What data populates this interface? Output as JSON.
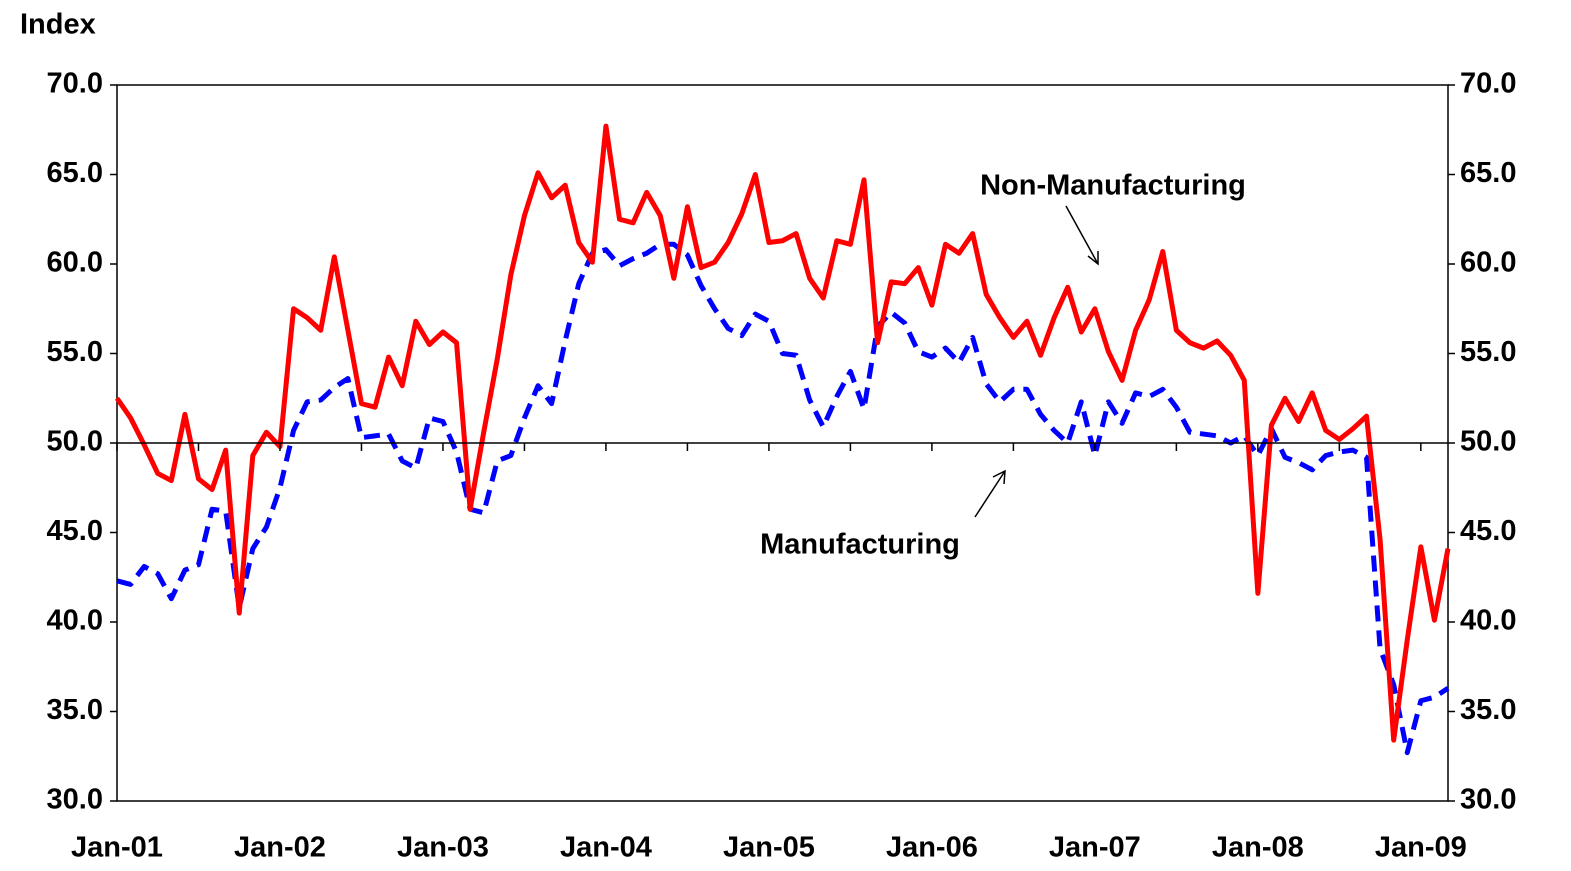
{
  "chart_data": {
    "type": "line",
    "y_axis_title": "Index",
    "categories": [
      "Jan-01",
      null,
      null,
      null,
      null,
      null,
      null,
      null,
      null,
      null,
      null,
      null,
      "Jan-02",
      null,
      null,
      null,
      null,
      null,
      null,
      null,
      null,
      null,
      null,
      null,
      "Jan-03",
      null,
      null,
      null,
      null,
      null,
      null,
      null,
      null,
      null,
      null,
      null,
      "Jan-04",
      null,
      null,
      null,
      null,
      null,
      null,
      null,
      null,
      null,
      null,
      null,
      "Jan-05",
      null,
      null,
      null,
      null,
      null,
      null,
      null,
      null,
      null,
      null,
      null,
      "Jan-06",
      null,
      null,
      null,
      null,
      null,
      null,
      null,
      null,
      null,
      null,
      null,
      "Jan-07",
      null,
      null,
      null,
      null,
      null,
      null,
      null,
      null,
      null,
      null,
      null,
      "Jan-08",
      null,
      null,
      null,
      null,
      null,
      null,
      null,
      null,
      null,
      null,
      null,
      "Jan-09",
      null,
      null
    ],
    "series": [
      {
        "name": "Non-Manufacturing",
        "color": "#ff0000",
        "dash": "solid",
        "values": [
          52.5,
          51.4,
          49.9,
          48.3,
          47.9,
          51.6,
          48.0,
          47.4,
          49.6,
          40.5,
          49.3,
          50.6,
          49.8,
          57.5,
          57.0,
          56.3,
          60.4,
          56.3,
          52.2,
          52.0,
          54.8,
          53.2,
          56.8,
          55.5,
          56.2,
          55.6,
          46.3,
          50.6,
          54.7,
          59.4,
          62.7,
          65.1,
          63.7,
          64.4,
          61.2,
          60.1,
          67.7,
          62.5,
          62.3,
          64.0,
          62.7,
          59.2,
          63.2,
          59.8,
          60.1,
          61.2,
          62.8,
          65.0,
          61.2,
          61.3,
          61.7,
          59.2,
          58.1,
          61.3,
          61.1,
          64.7,
          55.6,
          59.0,
          58.9,
          59.8,
          57.7,
          61.1,
          60.6,
          61.7,
          58.3,
          57.0,
          55.9,
          56.8,
          54.9,
          57.0,
          58.7,
          56.2,
          57.5,
          55.1,
          53.5,
          56.3,
          58.0,
          60.7,
          56.3,
          55.6,
          55.3,
          55.7,
          54.9,
          53.5,
          41.6,
          51.0,
          52.5,
          51.2,
          52.8,
          50.7,
          50.2,
          50.8,
          51.5,
          44.6,
          33.4,
          39.0,
          44.2,
          40.1,
          44.1
        ]
      },
      {
        "name": "Manufacturing",
        "color": "#0000ff",
        "dash": "dashed",
        "values": [
          42.3,
          42.1,
          43.1,
          42.7,
          41.3,
          42.9,
          43.2,
          46.3,
          46.2,
          40.8,
          44.1,
          45.3,
          47.5,
          50.7,
          52.3,
          52.4,
          53.1,
          53.6,
          50.3,
          50.4,
          50.5,
          49.0,
          48.6,
          51.4,
          51.2,
          49.5,
          46.3,
          46.1,
          49.0,
          49.3,
          51.4,
          53.2,
          52.2,
          55.7,
          58.9,
          60.6,
          60.8,
          59.9,
          60.3,
          60.6,
          61.1,
          61.1,
          60.5,
          58.8,
          57.5,
          56.4,
          56.0,
          57.2,
          56.8,
          55.0,
          54.9,
          52.4,
          50.9,
          52.6,
          54.0,
          51.9,
          56.5,
          57.3,
          56.7,
          55.1,
          54.8,
          55.3,
          54.5,
          55.9,
          53.3,
          52.3,
          53.0,
          53.0,
          51.6,
          50.7,
          50.0,
          52.3,
          49.3,
          52.3,
          51.1,
          52.8,
          52.6,
          53.0,
          52.0,
          50.6,
          50.5,
          50.4,
          50.0,
          50.4,
          49.3,
          50.8,
          49.2,
          48.9,
          48.5,
          49.3,
          49.5,
          49.6,
          49.2,
          38.5,
          36.5,
          32.7,
          35.6,
          35.8,
          36.3
        ]
      }
    ],
    "ylim": [
      30,
      70
    ],
    "yticks": [
      {
        "value": 30,
        "label": "30.0"
      },
      {
        "value": 35,
        "label": "35.0"
      },
      {
        "value": 40,
        "label": "40.0"
      },
      {
        "value": 45,
        "label": "45.0"
      },
      {
        "value": 50,
        "label": "50.0"
      },
      {
        "value": 55,
        "label": "55.0"
      },
      {
        "value": 60,
        "label": "60.0"
      },
      {
        "value": 65,
        "label": "65.0"
      },
      {
        "value": 70,
        "label": "70.0"
      }
    ],
    "mirror_y_axis": true,
    "x_axis_crosses_at": 50,
    "grid": false,
    "annotations": [
      "Non-Manufacturing",
      "Manufacturing"
    ]
  }
}
